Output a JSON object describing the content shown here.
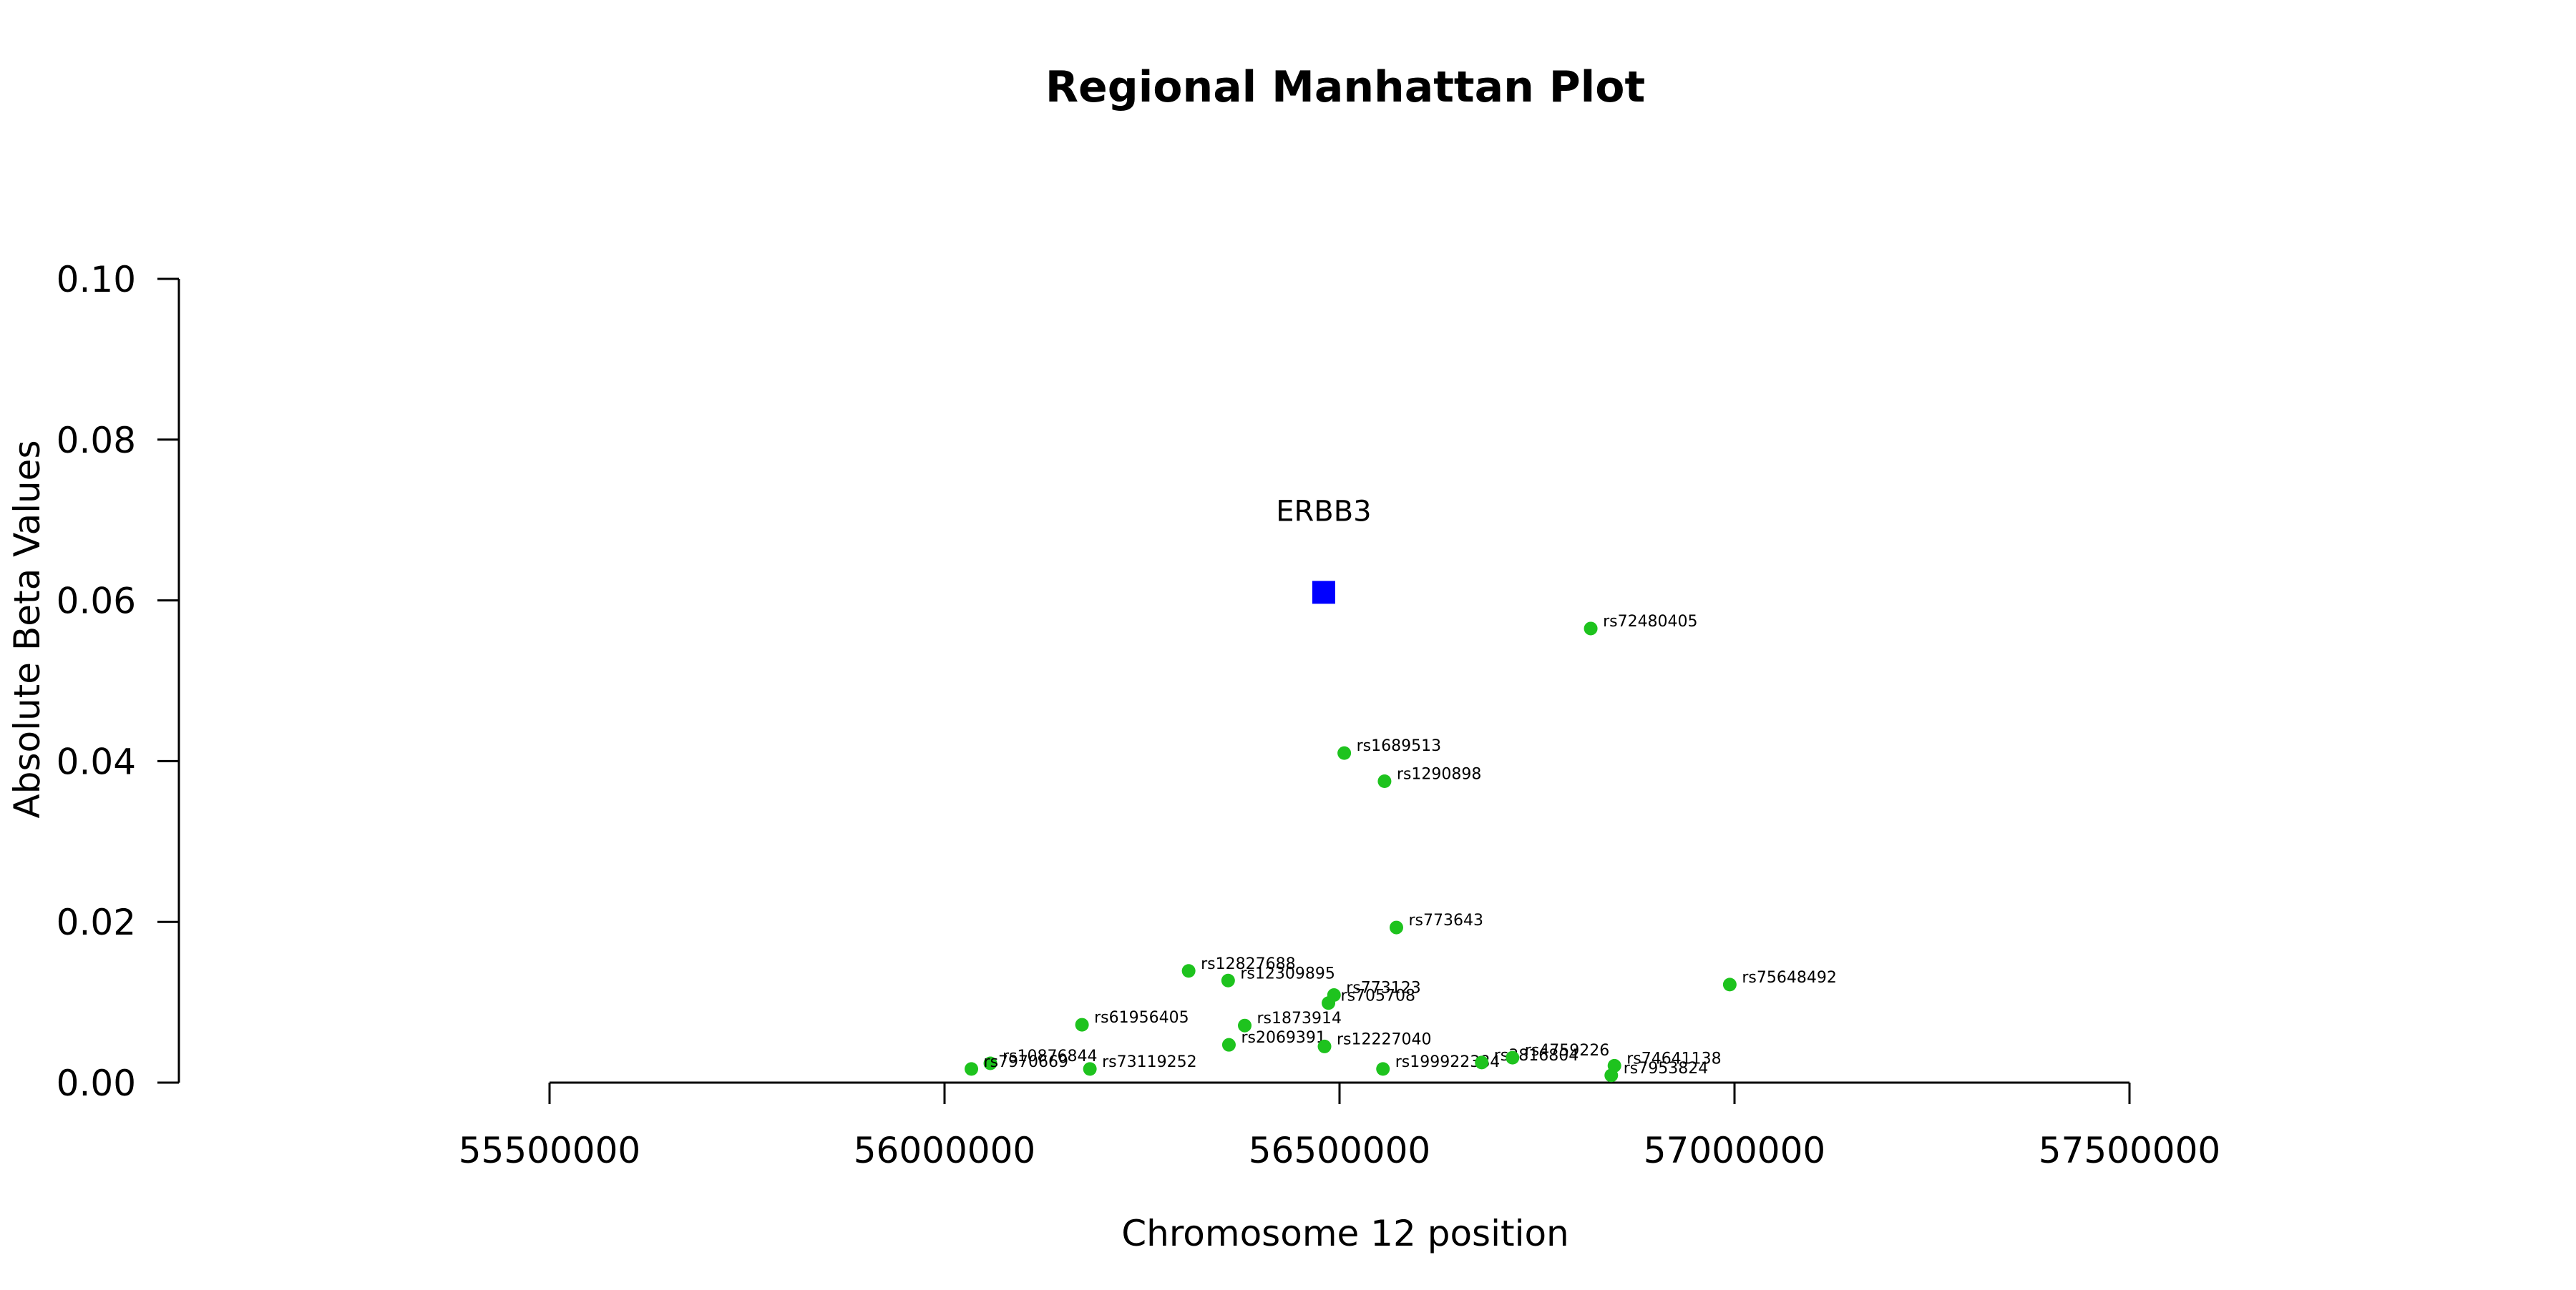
{
  "chart_data": {
    "type": "scatter",
    "title": "Regional Manhattan Plot",
    "xlabel": "Chromosome 12 position",
    "ylabel": "Absolute Beta Values",
    "xlim": [
      55500000,
      57500000
    ],
    "ylim": [
      0.0,
      0.1
    ],
    "x_ticks": [
      55500000,
      56000000,
      56500000,
      57000000,
      57500000
    ],
    "x_tick_labels": [
      "55500000",
      "56000000",
      "56500000",
      "57000000",
      "57500000"
    ],
    "y_ticks": [
      0.0,
      0.02,
      0.04,
      0.06,
      0.08,
      0.1
    ],
    "y_tick_labels": [
      "0.00",
      "0.02",
      "0.04",
      "0.06",
      "0.08",
      "0.10"
    ],
    "grid": false,
    "colors": {
      "snp": "#1ec31e",
      "gene": "#0000ff",
      "axis": "#000000"
    },
    "gene": {
      "name": "ERBB3",
      "x": 56480000,
      "y": 0.061,
      "marker": "square"
    },
    "series": [
      {
        "marker": "circle",
        "points": [
          {
            "x": 56818000,
            "y": 0.0565,
            "label": "rs72480405"
          },
          {
            "x": 56506000,
            "y": 0.041,
            "label": "rs1689513"
          },
          {
            "x": 56557000,
            "y": 0.0375,
            "label": "rs1290898"
          },
          {
            "x": 56572000,
            "y": 0.0193,
            "label": "rs773643"
          },
          {
            "x": 56994000,
            "y": 0.0122,
            "label": "rs75648492"
          },
          {
            "x": 56309000,
            "y": 0.0139,
            "label": "rs12827688"
          },
          {
            "x": 56359000,
            "y": 0.0127,
            "label": "rs12309895"
          },
          {
            "x": 56493000,
            "y": 0.0109,
            "label": "rs773123"
          },
          {
            "x": 56486000,
            "y": 0.0099,
            "label": "rs705708"
          },
          {
            "x": 56174000,
            "y": 0.0072,
            "label": "rs61956405"
          },
          {
            "x": 56380000,
            "y": 0.0071,
            "label": "rs1873914"
          },
          {
            "x": 56360000,
            "y": 0.0047,
            "label": "rs2069391"
          },
          {
            "x": 56481000,
            "y": 0.0045,
            "label": "rs12227040"
          },
          {
            "x": 56058000,
            "y": 0.0024,
            "label": "rs10876844"
          },
          {
            "x": 56034000,
            "y": 0.0017,
            "label": "rs7970669"
          },
          {
            "x": 56184000,
            "y": 0.0017,
            "label": "rs73119252"
          },
          {
            "x": 56555000,
            "y": 0.0017,
            "label": "rs199922384"
          },
          {
            "x": 56680000,
            "y": 0.0025,
            "label": "rs3816804"
          },
          {
            "x": 56719000,
            "y": 0.0031,
            "label": "rs4759226"
          },
          {
            "x": 56848000,
            "y": 0.0021,
            "label": "rs74641138"
          },
          {
            "x": 56844000,
            "y": 0.0009,
            "label": "rs7953824"
          }
        ]
      }
    ]
  }
}
